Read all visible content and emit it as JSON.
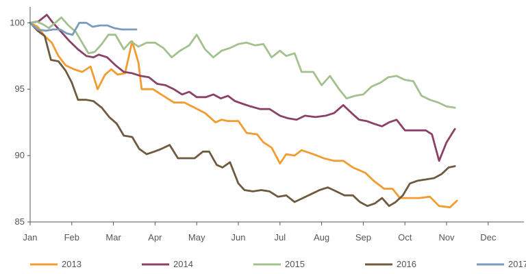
{
  "chart_data": {
    "type": "line",
    "title": "",
    "xlabel": "",
    "ylabel": "",
    "x_months": [
      "Jan",
      "Feb",
      "Mar",
      "Apr",
      "May",
      "Jun",
      "Jul",
      "Aug",
      "Sep",
      "Oct",
      "Nov",
      "Dec"
    ],
    "x_range": [
      0,
      11.85
    ],
    "ylim": [
      85,
      101.2
    ],
    "y_ticks": [
      85,
      90,
      95,
      100
    ],
    "grid": false,
    "legend_position": "bottom",
    "series": [
      {
        "name": "2013",
        "color": "#f29b30",
        "points": [
          [
            0.0,
            100.0
          ],
          [
            0.18,
            99.7
          ],
          [
            0.35,
            99.0
          ],
          [
            0.52,
            98.5
          ],
          [
            0.68,
            97.5
          ],
          [
            0.85,
            96.8
          ],
          [
            1.05,
            96.5
          ],
          [
            1.25,
            96.3
          ],
          [
            1.45,
            96.7
          ],
          [
            1.62,
            95.0
          ],
          [
            1.8,
            96.1
          ],
          [
            1.95,
            96.5
          ],
          [
            2.1,
            96.1
          ],
          [
            2.28,
            96.2
          ],
          [
            2.45,
            98.6
          ],
          [
            2.6,
            97.0
          ],
          [
            2.68,
            95.0
          ],
          [
            2.95,
            95.0
          ],
          [
            3.2,
            94.5
          ],
          [
            3.45,
            94.0
          ],
          [
            3.7,
            94.0
          ],
          [
            3.95,
            93.6
          ],
          [
            4.2,
            93.2
          ],
          [
            4.45,
            92.5
          ],
          [
            4.6,
            92.7
          ],
          [
            4.75,
            92.6
          ],
          [
            5.0,
            92.6
          ],
          [
            5.2,
            91.7
          ],
          [
            5.45,
            91.6
          ],
          [
            5.6,
            91.0
          ],
          [
            5.8,
            90.6
          ],
          [
            6.0,
            89.4
          ],
          [
            6.15,
            90.1
          ],
          [
            6.35,
            90.0
          ],
          [
            6.52,
            90.4
          ],
          [
            6.8,
            90.1
          ],
          [
            7.05,
            89.8
          ],
          [
            7.3,
            89.6
          ],
          [
            7.52,
            89.6
          ],
          [
            7.75,
            89.1
          ],
          [
            8.05,
            88.7
          ],
          [
            8.25,
            88.1
          ],
          [
            8.5,
            87.5
          ],
          [
            8.7,
            87.5
          ],
          [
            8.88,
            86.8
          ],
          [
            9.15,
            86.8
          ],
          [
            9.35,
            86.8
          ],
          [
            9.6,
            86.9
          ],
          [
            9.82,
            86.2
          ],
          [
            10.08,
            86.1
          ],
          [
            10.25,
            86.6
          ]
        ]
      },
      {
        "name": "2014",
        "color": "#8b4065",
        "points": [
          [
            0.0,
            100.0
          ],
          [
            0.2,
            100.1
          ],
          [
            0.4,
            100.6
          ],
          [
            0.55,
            100.0
          ],
          [
            0.75,
            99.3
          ],
          [
            0.95,
            98.6
          ],
          [
            1.15,
            98.0
          ],
          [
            1.35,
            97.5
          ],
          [
            1.52,
            97.4
          ],
          [
            1.65,
            97.6
          ],
          [
            1.85,
            97.4
          ],
          [
            2.05,
            96.8
          ],
          [
            2.25,
            96.3
          ],
          [
            2.45,
            96.2
          ],
          [
            2.65,
            96.0
          ],
          [
            2.85,
            95.9
          ],
          [
            3.05,
            95.4
          ],
          [
            3.25,
            95.3
          ],
          [
            3.45,
            95.0
          ],
          [
            3.65,
            94.6
          ],
          [
            3.82,
            94.8
          ],
          [
            4.0,
            94.4
          ],
          [
            4.22,
            94.4
          ],
          [
            4.4,
            94.6
          ],
          [
            4.58,
            94.3
          ],
          [
            4.75,
            94.5
          ],
          [
            4.92,
            94.1
          ],
          [
            5.1,
            93.9
          ],
          [
            5.3,
            93.7
          ],
          [
            5.52,
            93.5
          ],
          [
            5.75,
            93.5
          ],
          [
            6.0,
            93.0
          ],
          [
            6.2,
            92.8
          ],
          [
            6.4,
            92.7
          ],
          [
            6.6,
            93.0
          ],
          [
            6.85,
            92.9
          ],
          [
            7.1,
            93.0
          ],
          [
            7.3,
            93.2
          ],
          [
            7.52,
            93.8
          ],
          [
            7.72,
            93.2
          ],
          [
            7.9,
            92.7
          ],
          [
            8.08,
            92.6
          ],
          [
            8.25,
            92.4
          ],
          [
            8.45,
            92.2
          ],
          [
            8.62,
            92.5
          ],
          [
            8.8,
            92.7
          ],
          [
            9.0,
            91.9
          ],
          [
            9.25,
            91.9
          ],
          [
            9.5,
            91.9
          ],
          [
            9.65,
            91.6
          ],
          [
            9.82,
            89.6
          ],
          [
            10.0,
            91.0
          ],
          [
            10.2,
            92.0
          ]
        ]
      },
      {
        "name": "2015",
        "color": "#a3c18e",
        "points": [
          [
            0.0,
            100.0
          ],
          [
            0.15,
            100.1
          ],
          [
            0.3,
            99.9
          ],
          [
            0.45,
            99.6
          ],
          [
            0.6,
            100.0
          ],
          [
            0.75,
            100.4
          ],
          [
            0.92,
            99.8
          ],
          [
            1.1,
            99.3
          ],
          [
            1.25,
            98.5
          ],
          [
            1.4,
            97.7
          ],
          [
            1.55,
            97.8
          ],
          [
            1.72,
            98.4
          ],
          [
            1.88,
            99.1
          ],
          [
            2.05,
            99.1
          ],
          [
            2.25,
            98.0
          ],
          [
            2.42,
            98.6
          ],
          [
            2.6,
            98.2
          ],
          [
            2.8,
            98.5
          ],
          [
            3.0,
            98.5
          ],
          [
            3.2,
            98.1
          ],
          [
            3.4,
            97.4
          ],
          [
            3.6,
            97.9
          ],
          [
            3.82,
            98.3
          ],
          [
            4.0,
            99.1
          ],
          [
            4.2,
            98.0
          ],
          [
            4.4,
            97.4
          ],
          [
            4.6,
            97.9
          ],
          [
            4.8,
            98.1
          ],
          [
            5.0,
            98.4
          ],
          [
            5.2,
            98.5
          ],
          [
            5.4,
            98.3
          ],
          [
            5.6,
            98.4
          ],
          [
            5.8,
            97.4
          ],
          [
            6.0,
            97.9
          ],
          [
            6.15,
            97.5
          ],
          [
            6.35,
            97.7
          ],
          [
            6.52,
            96.3
          ],
          [
            6.8,
            96.3
          ],
          [
            7.0,
            95.3
          ],
          [
            7.2,
            96.0
          ],
          [
            7.42,
            95.0
          ],
          [
            7.6,
            94.3
          ],
          [
            7.8,
            94.5
          ],
          [
            8.0,
            94.6
          ],
          [
            8.2,
            95.2
          ],
          [
            8.42,
            95.5
          ],
          [
            8.6,
            95.9
          ],
          [
            8.8,
            96.0
          ],
          [
            9.0,
            95.7
          ],
          [
            9.2,
            95.6
          ],
          [
            9.4,
            94.5
          ],
          [
            9.6,
            94.2
          ],
          [
            9.8,
            94.0
          ],
          [
            10.0,
            93.7
          ],
          [
            10.2,
            93.6
          ]
        ]
      },
      {
        "name": "2016",
        "color": "#6e5a3e",
        "points": [
          [
            0.0,
            100.0
          ],
          [
            0.18,
            99.4
          ],
          [
            0.35,
            99.0
          ],
          [
            0.5,
            97.2
          ],
          [
            0.68,
            97.1
          ],
          [
            0.85,
            96.4
          ],
          [
            1.0,
            95.5
          ],
          [
            1.15,
            94.2
          ],
          [
            1.35,
            94.2
          ],
          [
            1.52,
            94.1
          ],
          [
            1.72,
            93.6
          ],
          [
            1.9,
            92.9
          ],
          [
            2.08,
            92.4
          ],
          [
            2.25,
            91.5
          ],
          [
            2.45,
            91.4
          ],
          [
            2.62,
            90.5
          ],
          [
            2.8,
            90.1
          ],
          [
            2.98,
            90.3
          ],
          [
            3.15,
            90.5
          ],
          [
            3.35,
            90.8
          ],
          [
            3.55,
            89.8
          ],
          [
            3.75,
            89.8
          ],
          [
            3.95,
            89.8
          ],
          [
            4.15,
            90.3
          ],
          [
            4.3,
            90.3
          ],
          [
            4.48,
            89.3
          ],
          [
            4.62,
            89.1
          ],
          [
            4.8,
            89.5
          ],
          [
            5.0,
            87.9
          ],
          [
            5.15,
            87.4
          ],
          [
            5.35,
            87.3
          ],
          [
            5.55,
            87.4
          ],
          [
            5.75,
            87.3
          ],
          [
            5.95,
            86.9
          ],
          [
            6.15,
            87.0
          ],
          [
            6.35,
            86.5
          ],
          [
            6.55,
            86.8
          ],
          [
            6.75,
            87.1
          ],
          [
            6.95,
            87.4
          ],
          [
            7.15,
            87.6
          ],
          [
            7.35,
            87.3
          ],
          [
            7.55,
            87.0
          ],
          [
            7.75,
            87.0
          ],
          [
            7.92,
            86.5
          ],
          [
            8.1,
            86.2
          ],
          [
            8.28,
            86.4
          ],
          [
            8.45,
            86.8
          ],
          [
            8.62,
            86.2
          ],
          [
            8.78,
            86.5
          ],
          [
            8.95,
            87.0
          ],
          [
            9.12,
            87.9
          ],
          [
            9.3,
            88.1
          ],
          [
            9.5,
            88.2
          ],
          [
            9.7,
            88.3
          ],
          [
            9.88,
            88.6
          ],
          [
            10.05,
            89.1
          ],
          [
            10.2,
            89.2
          ]
        ]
      },
      {
        "name": "2017",
        "color": "#7a9bbb",
        "points": [
          [
            0.0,
            100.0
          ],
          [
            0.18,
            99.5
          ],
          [
            0.38,
            99.4
          ],
          [
            0.55,
            99.5
          ],
          [
            0.72,
            99.5
          ],
          [
            0.88,
            99.2
          ],
          [
            1.02,
            99.1
          ],
          [
            1.18,
            100.0
          ],
          [
            1.35,
            100.0
          ],
          [
            1.5,
            99.7
          ],
          [
            1.68,
            99.8
          ],
          [
            1.85,
            99.8
          ],
          [
            2.02,
            99.6
          ],
          [
            2.2,
            99.5
          ],
          [
            2.38,
            99.5
          ],
          [
            2.55,
            99.5
          ]
        ]
      }
    ]
  }
}
